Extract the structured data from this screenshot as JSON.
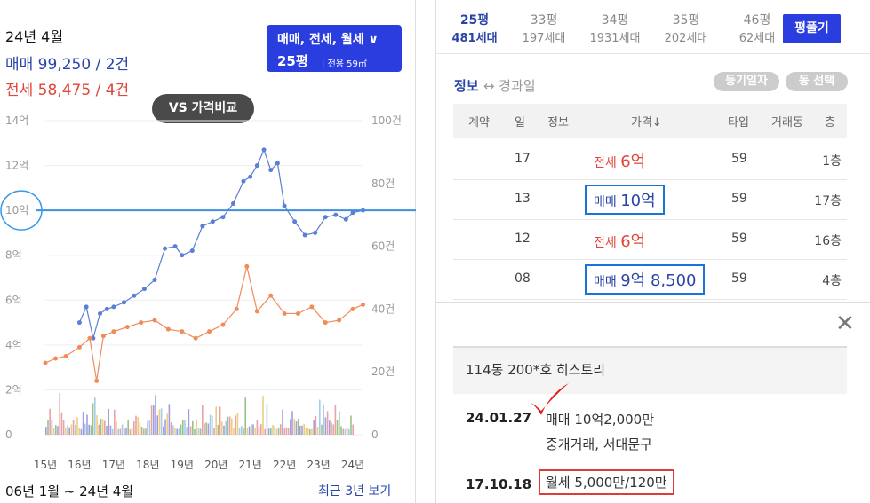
{
  "left_panel": {
    "date_label": "24년 4월",
    "sale_summary": "매매 99,250 / 2건",
    "rent_summary": "전세 58,475 / 4건",
    "type_selector": {
      "line1": "매매, 전세, 월세 ∨",
      "line2": "25평",
      "line3": "전용 59㎡"
    },
    "vs_button": "VS 가격비교",
    "range_label": "06년 1월 ~ 24년 4월",
    "recent_link": "최근 3년 보기",
    "colors": {
      "sale": "#5b7fd6",
      "rent": "#ef8c5a",
      "reference_line": "#3f8fe0"
    }
  },
  "chart_data": {
    "type": "line",
    "x_ticks": [
      "15년",
      "16년",
      "17년",
      "18년",
      "19년",
      "20년",
      "21년",
      "22년",
      "23년",
      "24년"
    ],
    "y_left_ticks": [
      "0",
      "2억",
      "4억",
      "6억",
      "8억",
      "10억",
      "12억",
      "14억"
    ],
    "y_right_ticks": [
      "0",
      "20건",
      "40건",
      "60건",
      "80건",
      "100건"
    ],
    "ylim_left": [
      0,
      14
    ],
    "ylim_right": [
      0,
      100
    ],
    "reference_line": 10,
    "series": [
      {
        "name": "매매",
        "x": [
          2016.0,
          2016.2,
          2016.4,
          2016.6,
          2016.8,
          2017.0,
          2017.3,
          2017.6,
          2017.9,
          2018.2,
          2018.5,
          2018.8,
          2019.0,
          2019.3,
          2019.6,
          2019.9,
          2020.2,
          2020.5,
          2020.8,
          2021.0,
          2021.2,
          2021.4,
          2021.6,
          2021.8,
          2022.0,
          2022.3,
          2022.6,
          2022.9,
          2023.2,
          2023.5,
          2023.8,
          2024.0,
          2024.3
        ],
        "values": [
          5.0,
          5.7,
          4.3,
          5.4,
          5.6,
          5.7,
          5.9,
          6.2,
          6.5,
          6.9,
          8.3,
          8.4,
          8.0,
          8.2,
          9.3,
          9.5,
          9.7,
          10.3,
          11.3,
          11.5,
          12.0,
          12.7,
          11.8,
          12.1,
          10.2,
          9.5,
          8.9,
          9.0,
          9.7,
          9.8,
          9.6,
          9.9,
          10.0
        ]
      },
      {
        "name": "전세",
        "x": [
          2015.0,
          2015.3,
          2015.6,
          2016.0,
          2016.3,
          2016.5,
          2016.7,
          2017.0,
          2017.4,
          2017.8,
          2018.2,
          2018.6,
          2019.0,
          2019.4,
          2019.8,
          2020.2,
          2020.6,
          2020.9,
          2021.2,
          2021.6,
          2022.0,
          2022.4,
          2022.8,
          2023.2,
          2023.6,
          2024.0,
          2024.3
        ],
        "values": [
          3.2,
          3.4,
          3.5,
          3.9,
          4.3,
          2.4,
          4.4,
          4.6,
          4.8,
          5.0,
          5.1,
          4.7,
          4.6,
          4.3,
          4.6,
          4.9,
          5.6,
          7.5,
          5.5,
          6.2,
          5.4,
          5.4,
          5.7,
          5.0,
          5.1,
          5.6,
          5.8
        ]
      }
    ]
  },
  "right_panel": {
    "pyeong_tabs": [
      {
        "size": "25평",
        "units": "481세대",
        "active": true
      },
      {
        "size": "33평",
        "units": "197세대",
        "active": false
      },
      {
        "size": "34평",
        "units": "1931세대",
        "active": false
      },
      {
        "size": "35평",
        "units": "202세대",
        "active": false
      },
      {
        "size": "46평",
        "units": "62세대",
        "active": false
      }
    ],
    "calc_button": "평풀기",
    "info_tab": "정보",
    "info_tab_rest": "↔ 경과일",
    "register_date_button": "등기일자",
    "dong_select_button": "동 선택",
    "columns": [
      "계약",
      "일",
      "정보",
      "가격↓",
      "타입",
      "거래동",
      "층"
    ],
    "rows": [
      {
        "day": "17",
        "kind": "전세",
        "price": "6억",
        "type": "59",
        "floor": "1층"
      },
      {
        "day": "13",
        "kind": "매매",
        "price": "10억",
        "type": "59",
        "floor": "17층"
      },
      {
        "day": "12",
        "kind": "전세",
        "price": "6억",
        "type": "59",
        "floor": "16층"
      },
      {
        "day": "08",
        "kind": "매매",
        "price": "9억 8,500",
        "type": "59",
        "floor": "4층"
      }
    ],
    "history_title": "114동 200*호 히스토리",
    "history": [
      {
        "date": "24.01.27",
        "line1": "매매 10억2,000만",
        "line2": "중개거래, 서대문구"
      },
      {
        "date": "17.10.18",
        "line1": "월세 5,000만/120만"
      }
    ]
  }
}
